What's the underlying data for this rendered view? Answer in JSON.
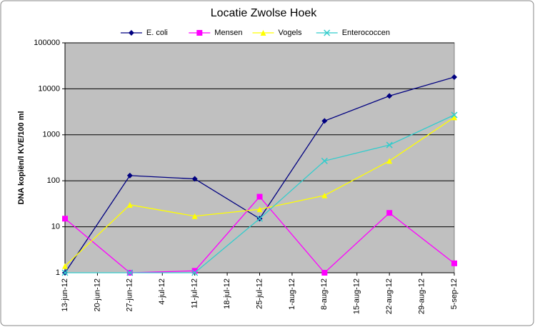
{
  "chart_data": {
    "type": "line",
    "title": "Locatie Zwolse Hoek",
    "y_label": "DNA kopiën/l  KVE/100 ml",
    "x": [
      "2012-06-13",
      "2012-06-27",
      "2012-07-11",
      "2012-07-25",
      "2012-08-08",
      "2012-08-22",
      "2012-09-05"
    ],
    "xlim": [
      "2012-06-13",
      "2012-09-05"
    ],
    "xticks": [
      {
        "value": "2012-06-13",
        "label": "13-jun-12"
      },
      {
        "value": "2012-06-20",
        "label": "20-jun-12"
      },
      {
        "value": "2012-06-27",
        "label": "27-jun-12"
      },
      {
        "value": "2012-07-04",
        "label": "4-jul-12"
      },
      {
        "value": "2012-07-11",
        "label": "11-jul-12"
      },
      {
        "value": "2012-07-18",
        "label": "18-jul-12"
      },
      {
        "value": "2012-07-25",
        "label": "25-jul-12"
      },
      {
        "value": "2012-08-01",
        "label": "1-aug-12"
      },
      {
        "value": "2012-08-08",
        "label": "8-aug-12"
      },
      {
        "value": "2012-08-15",
        "label": "15-aug-12"
      },
      {
        "value": "2012-08-22",
        "label": "22-aug-12"
      },
      {
        "value": "2012-08-29",
        "label": "29-aug-12"
      },
      {
        "value": "2012-09-05",
        "label": "5-sep-12"
      }
    ],
    "ylim": [
      1,
      100000
    ],
    "yticks": [
      1,
      10,
      100,
      1000,
      10000,
      100000
    ],
    "log_y": true,
    "grid": true,
    "legend": "top",
    "series": [
      {
        "name": "E. coli",
        "color": "#000080",
        "marker": "diamond",
        "values": [
          1,
          130,
          110,
          15,
          2000,
          7000,
          18000
        ]
      },
      {
        "name": "Mensen",
        "color": "#ff00ff",
        "marker": "square",
        "values": [
          15,
          1,
          1.1,
          45,
          1,
          20,
          1.6
        ]
      },
      {
        "name": "Vogels",
        "color": "#ffff00",
        "marker": "triangle",
        "values": [
          1.4,
          30,
          17,
          24,
          48,
          270,
          2400
        ]
      },
      {
        "name": "Enterococcen",
        "color": "#33cccc",
        "marker": "cross",
        "values": [
          1,
          1,
          1,
          15,
          270,
          600,
          2700
        ]
      }
    ]
  }
}
